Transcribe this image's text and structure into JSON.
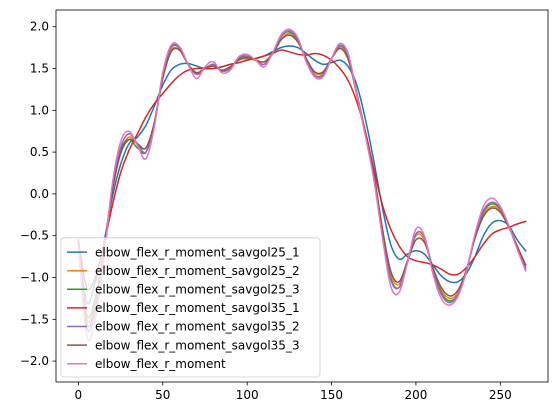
{
  "chart_data": {
    "type": "line",
    "title": "",
    "xlabel": "",
    "ylabel": "",
    "xlim": [
      -13.25,
      278.25
    ],
    "ylim": [
      -2.25,
      2.2
    ],
    "xticks": [
      0,
      50,
      100,
      150,
      200,
      250
    ],
    "yticks": [
      -2.0,
      -1.5,
      -1.0,
      -0.5,
      0.0,
      0.5,
      1.0,
      1.5,
      2.0
    ],
    "xtick_labels": [
      "0",
      "50",
      "100",
      "150",
      "200",
      "250"
    ],
    "ytick_labels": [
      "−2.0",
      "−1.5",
      "−1.0",
      "−0.5",
      "0.0",
      "0.5",
      "1.0",
      "1.5",
      "2.0"
    ],
    "grid": false,
    "legend_position": "lower-left",
    "series": [
      {
        "name": "elbow_flex_r_moment_savgol25_1",
        "color": "#1f77b4",
        "x": [
          0,
          5,
          10,
          15,
          20,
          25,
          30,
          35,
          40,
          45,
          50,
          55,
          60,
          65,
          70,
          75,
          80,
          85,
          90,
          95,
          100,
          105,
          110,
          115,
          120,
          125,
          130,
          135,
          140,
          145,
          150,
          155,
          160,
          165,
          170,
          175,
          180,
          185,
          190,
          195,
          200,
          205,
          210,
          215,
          220,
          225,
          230,
          235,
          240,
          245,
          250,
          255,
          260,
          265
        ],
        "y": [
          -0.6,
          -1.3,
          -1.05,
          -0.6,
          -0.05,
          0.35,
          0.6,
          0.68,
          0.82,
          1.05,
          1.3,
          1.48,
          1.55,
          1.56,
          1.53,
          1.5,
          1.5,
          1.52,
          1.55,
          1.57,
          1.6,
          1.62,
          1.65,
          1.7,
          1.75,
          1.77,
          1.75,
          1.68,
          1.6,
          1.55,
          1.57,
          1.6,
          1.52,
          1.3,
          0.9,
          0.4,
          -0.15,
          -0.6,
          -0.78,
          -0.72,
          -0.68,
          -0.72,
          -0.85,
          -0.98,
          -1.05,
          -1.05,
          -0.95,
          -0.75,
          -0.5,
          -0.35,
          -0.32,
          -0.38,
          -0.55,
          -0.68
        ]
      },
      {
        "name": "elbow_flex_r_moment_savgol25_2",
        "color": "#ff7f0e",
        "x": [
          0,
          5,
          10,
          15,
          20,
          25,
          30,
          35,
          40,
          45,
          50,
          55,
          60,
          65,
          70,
          75,
          80,
          85,
          90,
          95,
          100,
          105,
          110,
          115,
          120,
          125,
          130,
          135,
          140,
          145,
          150,
          155,
          160,
          165,
          170,
          175,
          180,
          185,
          190,
          195,
          200,
          205,
          210,
          215,
          220,
          225,
          230,
          235,
          240,
          245,
          250,
          255,
          260,
          265
        ],
        "y": [
          -0.62,
          -1.5,
          -1.3,
          -0.7,
          0.05,
          0.5,
          0.68,
          0.6,
          0.55,
          0.85,
          1.4,
          1.72,
          1.72,
          1.55,
          1.45,
          1.5,
          1.53,
          1.48,
          1.52,
          1.6,
          1.62,
          1.6,
          1.58,
          1.68,
          1.85,
          1.92,
          1.82,
          1.62,
          1.45,
          1.45,
          1.62,
          1.75,
          1.62,
          1.2,
          0.75,
          0.25,
          -0.4,
          -0.95,
          -1.08,
          -0.8,
          -0.5,
          -0.55,
          -0.9,
          -1.15,
          -1.25,
          -1.18,
          -0.9,
          -0.52,
          -0.25,
          -0.15,
          -0.2,
          -0.38,
          -0.62,
          -0.85
        ]
      },
      {
        "name": "elbow_flex_r_moment_savgol25_3",
        "color": "#2ca02c",
        "x": [
          0,
          5,
          10,
          15,
          20,
          25,
          30,
          35,
          40,
          45,
          50,
          55,
          60,
          65,
          70,
          75,
          80,
          85,
          90,
          95,
          100,
          105,
          110,
          115,
          120,
          125,
          130,
          135,
          140,
          145,
          150,
          155,
          160,
          165,
          170,
          175,
          180,
          185,
          190,
          195,
          200,
          205,
          210,
          215,
          220,
          225,
          230,
          235,
          240,
          245,
          250,
          255,
          260,
          265
        ],
        "y": [
          -0.62,
          -1.55,
          -1.35,
          -0.72,
          0.05,
          0.52,
          0.65,
          0.55,
          0.5,
          0.85,
          1.42,
          1.75,
          1.74,
          1.55,
          1.44,
          1.5,
          1.55,
          1.47,
          1.5,
          1.62,
          1.64,
          1.6,
          1.55,
          1.68,
          1.88,
          1.94,
          1.84,
          1.6,
          1.42,
          1.43,
          1.62,
          1.77,
          1.64,
          1.2,
          0.72,
          0.22,
          -0.45,
          -1.0,
          -1.12,
          -0.82,
          -0.48,
          -0.52,
          -0.9,
          -1.18,
          -1.28,
          -1.2,
          -0.92,
          -0.5,
          -0.22,
          -0.12,
          -0.18,
          -0.38,
          -0.65,
          -0.88
        ]
      },
      {
        "name": "elbow_flex_r_moment_savgol35_1",
        "color": "#d62728",
        "x": [
          0,
          5,
          10,
          15,
          20,
          25,
          30,
          35,
          40,
          45,
          50,
          55,
          60,
          65,
          70,
          75,
          80,
          85,
          90,
          95,
          100,
          105,
          110,
          115,
          120,
          125,
          130,
          135,
          140,
          145,
          150,
          155,
          160,
          165,
          170,
          175,
          180,
          185,
          190,
          195,
          200,
          205,
          210,
          215,
          220,
          225,
          230,
          235,
          240,
          245,
          250,
          255,
          260,
          265
        ],
        "y": [
          -0.55,
          -1.12,
          -1.0,
          -0.62,
          -0.15,
          0.25,
          0.52,
          0.72,
          0.92,
          1.08,
          1.2,
          1.32,
          1.42,
          1.48,
          1.5,
          1.5,
          1.5,
          1.52,
          1.55,
          1.57,
          1.6,
          1.62,
          1.65,
          1.68,
          1.72,
          1.7,
          1.67,
          1.66,
          1.68,
          1.66,
          1.6,
          1.5,
          1.35,
          1.1,
          0.75,
          0.3,
          -0.12,
          -0.42,
          -0.62,
          -0.75,
          -0.8,
          -0.82,
          -0.85,
          -0.9,
          -0.96,
          -0.96,
          -0.88,
          -0.75,
          -0.6,
          -0.48,
          -0.43,
          -0.4,
          -0.36,
          -0.33
        ]
      },
      {
        "name": "elbow_flex_r_moment_savgol35_2",
        "color": "#9467bd",
        "x": [
          0,
          5,
          10,
          15,
          20,
          25,
          30,
          35,
          40,
          45,
          50,
          55,
          60,
          65,
          70,
          75,
          80,
          85,
          90,
          95,
          100,
          105,
          110,
          115,
          120,
          125,
          130,
          135,
          140,
          145,
          150,
          155,
          160,
          165,
          170,
          175,
          180,
          185,
          190,
          195,
          200,
          205,
          210,
          215,
          220,
          225,
          230,
          235,
          240,
          245,
          250,
          255,
          260,
          265
        ],
        "y": [
          -0.62,
          -1.6,
          -1.4,
          -0.75,
          0.05,
          0.55,
          0.72,
          0.6,
          0.5,
          0.82,
          1.42,
          1.76,
          1.75,
          1.55,
          1.43,
          1.5,
          1.55,
          1.47,
          1.5,
          1.63,
          1.65,
          1.6,
          1.55,
          1.68,
          1.88,
          1.95,
          1.85,
          1.6,
          1.42,
          1.42,
          1.62,
          1.78,
          1.65,
          1.2,
          0.72,
          0.2,
          -0.45,
          -1.02,
          -1.12,
          -0.82,
          -0.48,
          -0.52,
          -0.92,
          -1.2,
          -1.3,
          -1.2,
          -0.92,
          -0.5,
          -0.2,
          -0.1,
          -0.17,
          -0.38,
          -0.65,
          -0.9
        ]
      },
      {
        "name": "elbow_flex_r_moment_savgol35_3",
        "color": "#8c564b",
        "x": [
          0,
          5,
          10,
          15,
          20,
          25,
          30,
          35,
          40,
          45,
          50,
          55,
          60,
          65,
          70,
          75,
          80,
          85,
          90,
          95,
          100,
          105,
          110,
          115,
          120,
          125,
          130,
          135,
          140,
          145,
          150,
          155,
          160,
          165,
          170,
          175,
          180,
          185,
          190,
          195,
          200,
          205,
          210,
          215,
          220,
          225,
          230,
          235,
          240,
          245,
          250,
          255,
          260,
          265
        ],
        "y": [
          -0.62,
          -1.45,
          -1.25,
          -0.68,
          0.02,
          0.48,
          0.65,
          0.6,
          0.55,
          0.85,
          1.38,
          1.7,
          1.72,
          1.55,
          1.45,
          1.5,
          1.53,
          1.48,
          1.52,
          1.6,
          1.63,
          1.6,
          1.58,
          1.67,
          1.84,
          1.9,
          1.82,
          1.62,
          1.46,
          1.46,
          1.62,
          1.74,
          1.6,
          1.18,
          0.72,
          0.24,
          -0.4,
          -0.92,
          -1.05,
          -0.8,
          -0.55,
          -0.58,
          -0.88,
          -1.12,
          -1.22,
          -1.15,
          -0.9,
          -0.53,
          -0.27,
          -0.17,
          -0.22,
          -0.4,
          -0.63,
          -0.85
        ]
      },
      {
        "name": "elbow_flex_r_moment",
        "color": "#e377c2",
        "x": [
          0,
          5,
          10,
          15,
          20,
          25,
          30,
          35,
          40,
          45,
          50,
          55,
          60,
          65,
          70,
          75,
          80,
          85,
          90,
          95,
          100,
          105,
          110,
          115,
          120,
          125,
          130,
          135,
          140,
          145,
          150,
          155,
          160,
          165,
          170,
          175,
          180,
          185,
          190,
          195,
          200,
          205,
          210,
          215,
          220,
          225,
          230,
          235,
          240,
          245,
          250,
          255,
          260,
          265
        ],
        "y": [
          -0.62,
          -1.7,
          -1.5,
          -0.8,
          0.1,
          0.62,
          0.75,
          0.58,
          0.42,
          0.8,
          1.45,
          1.78,
          1.76,
          1.55,
          1.38,
          1.52,
          1.58,
          1.45,
          1.48,
          1.64,
          1.67,
          1.6,
          1.52,
          1.68,
          1.9,
          1.97,
          1.87,
          1.58,
          1.4,
          1.4,
          1.62,
          1.8,
          1.67,
          1.18,
          0.7,
          0.18,
          -0.5,
          -1.1,
          -1.18,
          -0.82,
          -0.42,
          -0.5,
          -0.95,
          -1.25,
          -1.33,
          -1.22,
          -0.92,
          -0.48,
          -0.15,
          -0.05,
          -0.15,
          -0.38,
          -0.66,
          -0.92
        ]
      }
    ]
  }
}
